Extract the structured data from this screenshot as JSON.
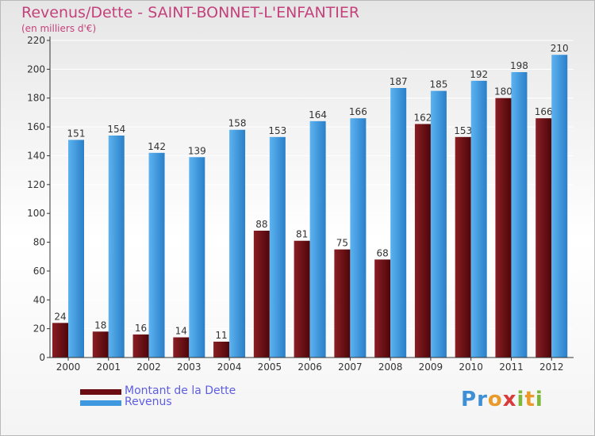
{
  "header": {
    "title": "Revenus/Dette - SAINT-BONNET-L'ENFANTIER",
    "subtitle": "(en milliers d'€)"
  },
  "legend": {
    "items": [
      {
        "label": "Montant de la Dette",
        "color": "#6b0d12"
      },
      {
        "label": "Revenus",
        "color": "#3f99e0"
      }
    ]
  },
  "logo": {
    "letters": [
      {
        "ch": "P",
        "color": "#3f8fd6"
      },
      {
        "ch": "r",
        "color": "#3f8fd6"
      },
      {
        "ch": "o",
        "color": "#e99a2a"
      },
      {
        "ch": "x",
        "color": "#d93a3a"
      },
      {
        "ch": "i",
        "color": "#7cb83a"
      },
      {
        "ch": "t",
        "color": "#e99a2a"
      },
      {
        "ch": "i",
        "color": "#7cb83a"
      }
    ]
  },
  "chart_data": {
    "type": "bar",
    "title": "Revenus/Dette - SAINT-BONNET-L'ENFANTIER",
    "ylabel": "(en milliers d'€)",
    "categories": [
      "2000",
      "2001",
      "2002",
      "2003",
      "2004",
      "2005",
      "2006",
      "2007",
      "2008",
      "2009",
      "2010",
      "2011",
      "2012"
    ],
    "series": [
      {
        "name": "Montant de la Dette",
        "color": "#6b0d12",
        "values": [
          24,
          18,
          16,
          14,
          11,
          88,
          81,
          75,
          68,
          162,
          153,
          180,
          166
        ]
      },
      {
        "name": "Revenus",
        "color": "#3f99e0",
        "values": [
          151,
          154,
          142,
          139,
          158,
          153,
          164,
          166,
          187,
          185,
          192,
          198,
          210
        ]
      }
    ],
    "ylim": [
      0,
      220
    ],
    "yticks": [
      0,
      20,
      40,
      60,
      80,
      100,
      120,
      140,
      160,
      180,
      200,
      220
    ],
    "grid": true,
    "legend_position": "bottom-left"
  }
}
